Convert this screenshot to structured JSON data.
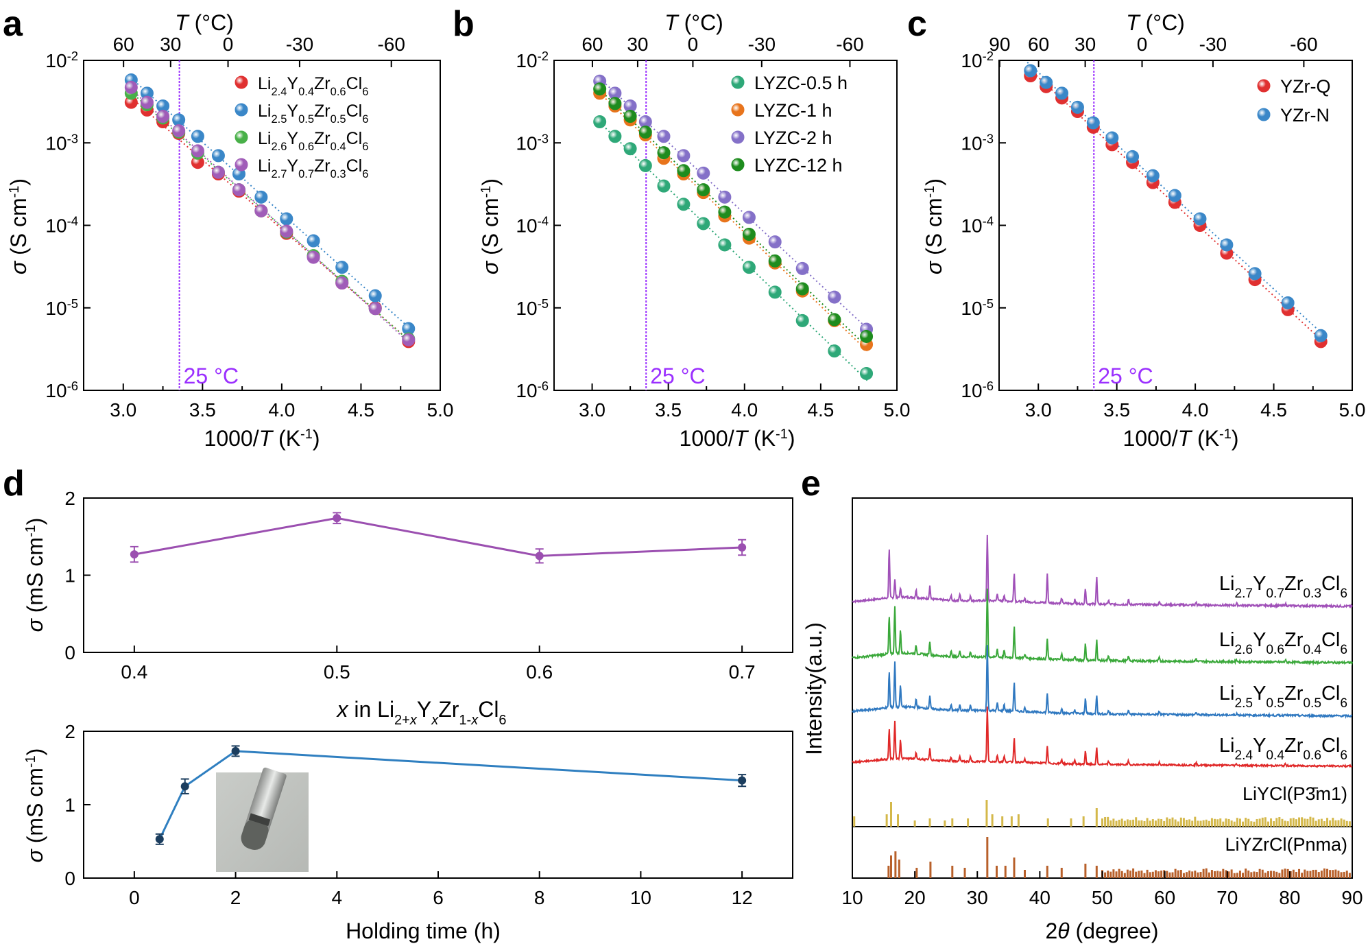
{
  "panels": {
    "a": {
      "letter": "a"
    },
    "b": {
      "letter": "b"
    },
    "c": {
      "letter": "c"
    },
    "d": {
      "letter": "d"
    },
    "e": {
      "letter": "e"
    }
  },
  "chart_data": [
    {
      "panel": "a",
      "type": "scatter",
      "xlabel": "1000/T (K⁻¹)",
      "ylabel": "σ (S cm⁻¹)",
      "top_xlabel": "T (°C)",
      "top_ticks": [
        "60",
        "30",
        "0",
        "-30",
        "-60"
      ],
      "top_tick_celsius": [
        60,
        30,
        0,
        -30,
        -60
      ],
      "xlim": [
        2.75,
        5.0
      ],
      "xticks": [
        "3.0",
        "3.5",
        "4.0",
        "4.5",
        "5.0"
      ],
      "ylim_log10": [
        -6,
        -2
      ],
      "yscale": "log",
      "yticks": [
        "10⁻⁶",
        "10⁻⁵",
        "10⁻⁴",
        "10⁻³",
        "10⁻²"
      ],
      "vline": {
        "x": 3.354,
        "label": "25 °C",
        "color": "#9b30ff"
      },
      "legend_position": "top-right",
      "series": [
        {
          "name": "Li2.4Y0.4Zr0.6Cl6",
          "color": "#e03030",
          "x": [
            3.05,
            3.15,
            3.25,
            3.35,
            3.47,
            3.6,
            3.73,
            3.87,
            4.03,
            4.2,
            4.38,
            4.59,
            4.8
          ],
          "y": [
            0.0031,
            0.0025,
            0.0018,
            0.0013,
            0.00058,
            0.00042,
            0.00026,
            0.00015,
            8e-05,
            4.2e-05,
            2e-05,
            1e-05,
            3.9e-06
          ]
        },
        {
          "name": "Li2.5Y0.5Zr0.5Cl6",
          "color": "#3a87c8",
          "x": [
            3.05,
            3.15,
            3.25,
            3.35,
            3.47,
            3.6,
            3.73,
            3.87,
            4.03,
            4.2,
            4.38,
            4.59,
            4.8
          ],
          "y": [
            0.0058,
            0.004,
            0.0028,
            0.0019,
            0.0012,
            0.0007,
            0.00042,
            0.00022,
            0.00012,
            6.5e-05,
            3.1e-05,
            1.4e-05,
            5.6e-06
          ]
        },
        {
          "name": "Li2.6Y0.6Zr0.4Cl6",
          "color": "#48b048",
          "x": [
            3.05,
            3.15,
            3.25,
            3.35,
            3.47,
            3.6,
            3.73,
            3.87,
            4.03,
            4.2,
            4.38,
            4.59,
            4.8
          ],
          "y": [
            0.004,
            0.0029,
            0.002,
            0.00135,
            0.00075,
            0.00044,
            0.00027,
            0.00015,
            8.3e-05,
            4.3e-05,
            2.1e-05,
            9.8e-06,
            4.2e-06
          ]
        },
        {
          "name": "Li2.7Y0.7Zr0.3Cl6",
          "color": "#a05cb8",
          "x": [
            3.05,
            3.15,
            3.25,
            3.35,
            3.47,
            3.6,
            3.73,
            3.87,
            4.03,
            4.2,
            4.38,
            4.59,
            4.8
          ],
          "y": [
            0.0047,
            0.0031,
            0.0021,
            0.0014,
            0.0008,
            0.00044,
            0.00027,
            0.00015,
            8.5e-05,
            4.1e-05,
            2e-05,
            9.8e-06,
            4.1e-06
          ]
        }
      ]
    },
    {
      "panel": "b",
      "type": "scatter",
      "xlabel": "1000/T (K⁻¹)",
      "ylabel": "σ (S cm⁻¹)",
      "top_xlabel": "T (°C)",
      "top_ticks": [
        "60",
        "30",
        "0",
        "-30",
        "-60"
      ],
      "top_tick_celsius": [
        60,
        30,
        0,
        -30,
        -60
      ],
      "xlim": [
        2.75,
        5.0
      ],
      "xticks": [
        "3.0",
        "3.5",
        "4.0",
        "4.5",
        "5.0"
      ],
      "ylim_log10": [
        -6,
        -2
      ],
      "yscale": "log",
      "yticks": [
        "10⁻⁶",
        "10⁻⁵",
        "10⁻⁴",
        "10⁻³",
        "10⁻²"
      ],
      "vline": {
        "x": 3.354,
        "label": "25 °C",
        "color": "#9b30ff"
      },
      "legend_position": "top-right",
      "series": [
        {
          "name": "LYZC-0.5 h",
          "color": "#2ea878",
          "x": [
            3.05,
            3.15,
            3.25,
            3.35,
            3.47,
            3.6,
            3.73,
            3.87,
            4.03,
            4.2,
            4.38,
            4.59,
            4.8
          ],
          "y": [
            0.0018,
            0.0012,
            0.00085,
            0.00053,
            0.0003,
            0.00018,
            0.000105,
            5.8e-05,
            3.1e-05,
            1.55e-05,
            7e-06,
            3e-06,
            1.6e-06
          ]
        },
        {
          "name": "LYZC-1 h",
          "color": "#e8741c",
          "x": [
            3.05,
            3.15,
            3.25,
            3.35,
            3.47,
            3.6,
            3.73,
            3.87,
            4.03,
            4.2,
            4.38,
            4.59,
            4.8
          ],
          "y": [
            0.004,
            0.0028,
            0.0019,
            0.00125,
            0.00065,
            0.00042,
            0.00025,
            0.00013,
            7e-05,
            3.5e-05,
            1.6e-05,
            7e-06,
            3.6e-06
          ]
        },
        {
          "name": "LYZC-2 h",
          "color": "#8470c8",
          "x": [
            3.05,
            3.15,
            3.25,
            3.35,
            3.47,
            3.6,
            3.73,
            3.87,
            4.03,
            4.2,
            4.38,
            4.59,
            4.8
          ],
          "y": [
            0.0056,
            0.004,
            0.0028,
            0.0018,
            0.0012,
            0.0007,
            0.00043,
            0.00022,
            0.000125,
            6.3e-05,
            3e-05,
            1.35e-05,
            5.5e-06
          ]
        },
        {
          "name": "LYZC-12 h",
          "color": "#1e8c1e",
          "x": [
            3.05,
            3.15,
            3.25,
            3.35,
            3.47,
            3.6,
            3.73,
            3.87,
            4.03,
            4.2,
            4.38,
            4.59,
            4.8
          ],
          "y": [
            0.0045,
            0.003,
            0.0021,
            0.00135,
            0.00076,
            0.00046,
            0.00027,
            0.000145,
            7.8e-05,
            3.7e-05,
            1.7e-05,
            7.2e-06,
            4.5e-06
          ]
        }
      ]
    },
    {
      "panel": "c",
      "type": "scatter",
      "xlabel": "1000/T (K⁻¹)",
      "ylabel": "σ (S cm⁻¹)",
      "top_xlabel": "T (°C)",
      "top_ticks": [
        "90",
        "60",
        "30",
        "0",
        "-30",
        "-60"
      ],
      "top_tick_celsius": [
        90,
        60,
        30,
        0,
        -30,
        -60
      ],
      "xlim": [
        2.75,
        5.0
      ],
      "xticks": [
        "3.0",
        "3.5",
        "4.0",
        "4.5",
        "5.0"
      ],
      "ylim_log10": [
        -6,
        -2
      ],
      "yscale": "log",
      "yticks": [
        "10⁻⁶",
        "10⁻⁵",
        "10⁻⁴",
        "10⁻³",
        "10⁻²"
      ],
      "vline": {
        "x": 3.354,
        "label": "25 °C",
        "color": "#9b30ff"
      },
      "legend_position": "top-right",
      "series": [
        {
          "name": "YZr-Q",
          "color": "#e03030",
          "x": [
            2.95,
            3.05,
            3.15,
            3.25,
            3.35,
            3.47,
            3.6,
            3.73,
            3.87,
            4.03,
            4.2,
            4.38,
            4.59,
            4.8
          ],
          "y": [
            0.0065,
            0.0048,
            0.0035,
            0.0024,
            0.00155,
            0.00095,
            0.00058,
            0.00033,
            0.00019,
            0.0001,
            4.6e-05,
            2.2e-05,
            9.5e-06,
            3.9e-06
          ]
        },
        {
          "name": "YZr-N",
          "color": "#3a87c8",
          "x": [
            2.95,
            3.05,
            3.15,
            3.25,
            3.35,
            3.47,
            3.6,
            3.73,
            3.87,
            4.03,
            4.2,
            4.38,
            4.59,
            4.8
          ],
          "y": [
            0.0075,
            0.0054,
            0.004,
            0.0027,
            0.00175,
            0.00115,
            0.00068,
            0.0004,
            0.00023,
            0.00012,
            5.8e-05,
            2.6e-05,
            1.15e-05,
            4.6e-06
          ]
        }
      ]
    },
    {
      "panel": "d-top",
      "type": "line",
      "xlabel": "x in Li2+xYxZr1-xCl6",
      "ylabel": "σ (mS cm⁻¹)",
      "xlim": [
        0.375,
        0.725
      ],
      "xticks": [
        "0.4",
        "0.5",
        "0.6",
        "0.7"
      ],
      "ylim": [
        0,
        2
      ],
      "yticks": [
        "0",
        "1",
        "2"
      ],
      "color": "#9b4fb0",
      "x": [
        0.4,
        0.5,
        0.6,
        0.7
      ],
      "y": [
        1.27,
        1.74,
        1.25,
        1.36
      ],
      "err": [
        0.1,
        0.07,
        0.09,
        0.1
      ]
    },
    {
      "panel": "d-bottom",
      "type": "line",
      "xlabel": "Holding time (h)",
      "ylabel": "σ (mS cm⁻¹)",
      "xlim": [
        -1,
        13
      ],
      "xticks": [
        "0",
        "2",
        "4",
        "6",
        "8",
        "10",
        "12"
      ],
      "ylim": [
        0,
        2
      ],
      "yticks": [
        "0",
        "1",
        "2"
      ],
      "color": "#2f7fc0",
      "marker_color": "#1b3d5e",
      "x": [
        0.5,
        1,
        2,
        12
      ],
      "y": [
        0.53,
        1.25,
        1.73,
        1.33
      ],
      "err": [
        0.07,
        0.1,
        0.07,
        0.08
      ]
    },
    {
      "panel": "e",
      "type": "line",
      "xlabel": "2θ (degree)",
      "ylabel": "Intensity(a.u.)",
      "xlim": [
        10,
        90
      ],
      "xticks": [
        "10",
        "20",
        "30",
        "40",
        "50",
        "60",
        "70",
        "80",
        "90"
      ],
      "series": [
        {
          "name": "Li2.7Y0.7Zr0.3Cl6",
          "color": "#a050b8"
        },
        {
          "name": "Li2.6Y0.6Zr0.4Cl6",
          "color": "#3aa83a"
        },
        {
          "name": "Li2.5Y0.5Zr0.5Cl6",
          "color": "#2f78c0"
        },
        {
          "name": "Li2.4Y0.4Zr0.6Cl6",
          "color": "#e02828"
        }
      ],
      "references": [
        {
          "name": "LiYCl(P3̄m1)",
          "color": "#d4b84a"
        },
        {
          "name": "LiYZrCl(Pnma)",
          "color": "#b8602a"
        }
      ],
      "main_peaks_2theta": [
        15.9,
        16.8,
        17.7,
        22.4,
        31.6,
        35.9,
        41.2,
        47.3,
        49.1
      ]
    }
  ]
}
